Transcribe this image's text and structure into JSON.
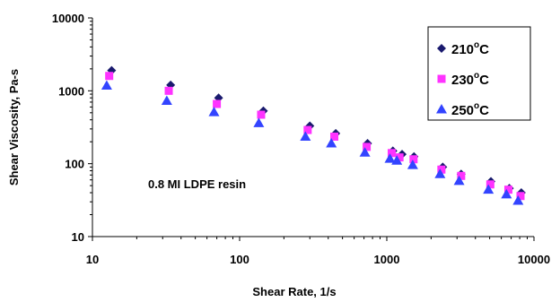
{
  "chart_data": {
    "type": "scatter",
    "xscale": "log",
    "yscale": "log",
    "xlim": [
      10,
      10000
    ],
    "ylim": [
      10,
      10000
    ],
    "xlabel": "Shear Rate, 1/s",
    "ylabel": "Shear Viscosity, Pa-s",
    "x_ticks": [
      "10",
      "100",
      "1000",
      "10000"
    ],
    "y_ticks": [
      "10",
      "100",
      "1000",
      "10000"
    ],
    "grid": false,
    "legend_position": "top-right",
    "annotation": "0.8 MI LDPE resin",
    "series": [
      {
        "name": "210",
        "unit_sup": "o",
        "unit": "C",
        "marker": "diamond",
        "color": "#1a1a6e",
        "x": [
          13.5,
          34,
          72,
          145,
          300,
          450,
          740,
          1100,
          1270,
          1530,
          2400,
          3200,
          5100,
          6800,
          8200
        ],
        "y": [
          1900,
          1200,
          800,
          530,
          330,
          260,
          190,
          150,
          135,
          125,
          90,
          72,
          57,
          46,
          40
        ]
      },
      {
        "name": "230",
        "unit_sup": "o",
        "unit": "C",
        "marker": "square",
        "color": "#ff33ff",
        "x": [
          13,
          33,
          70,
          140,
          290,
          440,
          730,
          1080,
          1220,
          1520,
          2350,
          3200,
          5050,
          6700,
          8100
        ],
        "y": [
          1600,
          1000,
          660,
          470,
          290,
          235,
          170,
          140,
          122,
          115,
          83,
          68,
          52,
          44,
          36
        ]
      },
      {
        "name": "250",
        "unit_sup": "o",
        "unit": "C",
        "marker": "triangle",
        "color": "#3344ff",
        "x": [
          12.5,
          32,
          67,
          135,
          280,
          420,
          710,
          1050,
          1170,
          1500,
          2300,
          3100,
          4900,
          6500,
          7800
        ],
        "y": [
          1180,
          730,
          510,
          360,
          235,
          190,
          142,
          117,
          110,
          96,
          72,
          58,
          44,
          38,
          31
        ]
      }
    ]
  }
}
